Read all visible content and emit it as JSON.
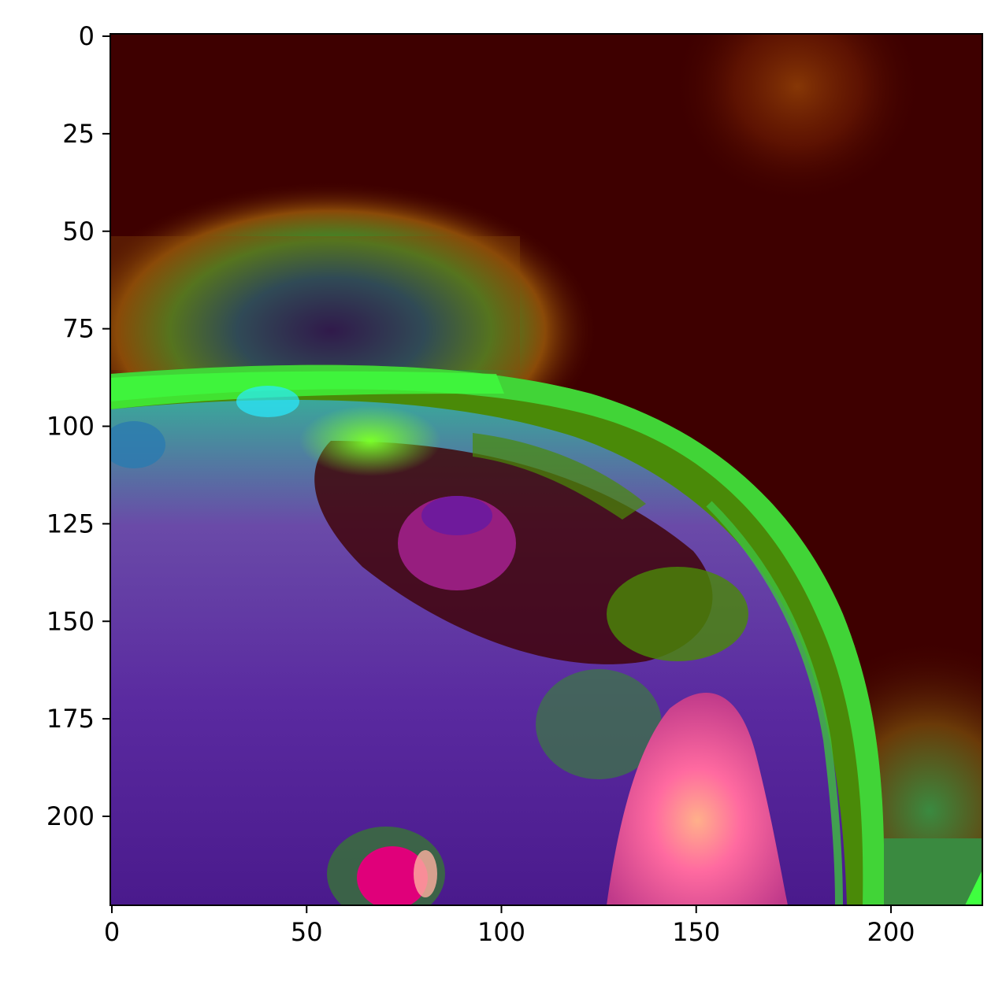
{
  "image": {
    "description_free": true,
    "x_extent": [
      0,
      224
    ],
    "y_extent": [
      0,
      224
    ],
    "y_inverted": true
  },
  "axes": {
    "x_ticks": [
      {
        "value": 0,
        "label": "0"
      },
      {
        "value": 50,
        "label": "50"
      },
      {
        "value": 100,
        "label": "100"
      },
      {
        "value": 150,
        "label": "150"
      },
      {
        "value": 200,
        "label": "200"
      }
    ],
    "y_ticks": [
      {
        "value": 0,
        "label": "0"
      },
      {
        "value": 25,
        "label": "25"
      },
      {
        "value": 50,
        "label": "50"
      },
      {
        "value": 75,
        "label": "75"
      },
      {
        "value": 100,
        "label": "100"
      },
      {
        "value": 125,
        "label": "125"
      },
      {
        "value": 150,
        "label": "150"
      },
      {
        "value": 175,
        "label": "175"
      },
      {
        "value": 200,
        "label": "200"
      }
    ]
  },
  "colors": {
    "background_heat": "#3e0000",
    "hot_spot": "#8a3a06",
    "cold_spot": "#00006e",
    "rim_green": "#3fff3f",
    "tissue_purple": "#4a1a8c",
    "tissue_pink": "#ff5a9a",
    "vessel_magenta": "#e0007a"
  }
}
